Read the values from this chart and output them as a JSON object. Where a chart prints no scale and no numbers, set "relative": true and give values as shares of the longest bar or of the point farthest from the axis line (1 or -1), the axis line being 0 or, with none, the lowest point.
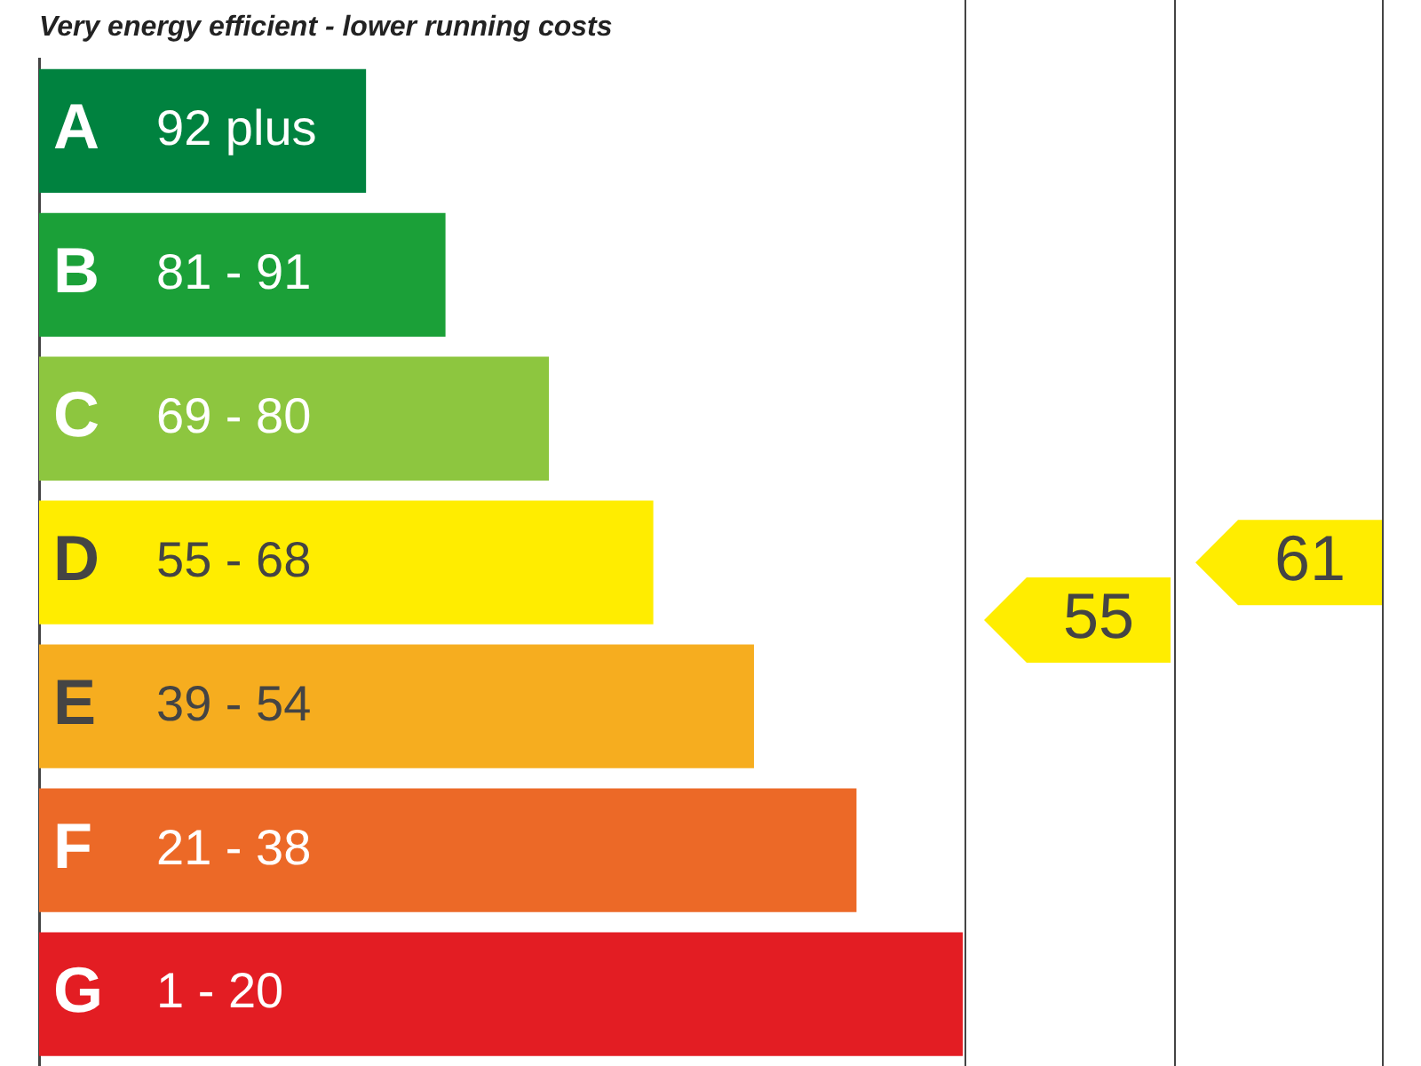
{
  "chart_data": {
    "type": "bar",
    "orientation": "horizontal",
    "relative": true,
    "title": "Very energy efficient - lower running costs",
    "categories": [
      "A 92 plus",
      "B 81 - 91",
      "C 69 - 80",
      "D 55 - 68",
      "E 39 - 54",
      "F 21 - 38",
      "G 1 - 20"
    ],
    "values": [
      0.354,
      0.44,
      0.552,
      0.665,
      0.774,
      0.885,
      1
    ],
    "colors": [
      "#00823f",
      "#1ba038",
      "#8dc63f",
      "#ffed00",
      "#f6ad1f",
      "#ec6927",
      "#e31d23"
    ],
    "annotations": [
      "55",
      "61"
    ],
    "legend": false
  }
}
